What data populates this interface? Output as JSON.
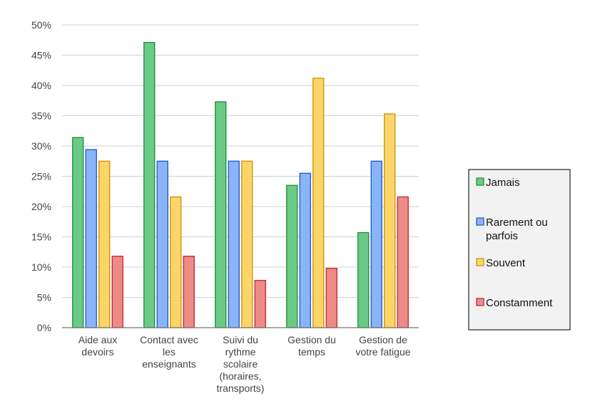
{
  "chart_data": {
    "type": "bar",
    "categories": [
      [
        "Aide aux",
        "devoirs"
      ],
      [
        "Contact avec",
        "les",
        "enseignants"
      ],
      [
        "Suivi du",
        "rythme",
        "scolaire",
        "(horaires,",
        "transports)"
      ],
      [
        "Gestion du",
        "temps"
      ],
      [
        "Gestion de",
        "votre fatigue"
      ]
    ],
    "series": [
      {
        "name": "Jamais",
        "legend_lines": [
          "Jamais"
        ],
        "color": "#6ACB85",
        "stroke": "#1E8A3C",
        "values": [
          31.4,
          47.1,
          37.3,
          23.5,
          15.7
        ]
      },
      {
        "name": "Rarement ou parfois",
        "legend_lines": [
          "Rarement ou",
          "parfois"
        ],
        "color": "#8AB4F8",
        "stroke": "#1A56C8",
        "values": [
          29.4,
          27.5,
          27.5,
          25.5,
          27.5
        ]
      },
      {
        "name": "Souvent",
        "legend_lines": [
          "Souvent"
        ],
        "color": "#FCD56A",
        "stroke": "#C99200",
        "values": [
          27.5,
          21.6,
          27.5,
          41.2,
          35.3
        ]
      },
      {
        "name": "Constamment",
        "legend_lines": [
          "Constamment"
        ],
        "color": "#EE8B86",
        "stroke": "#C0262A",
        "values": [
          11.8,
          11.8,
          7.8,
          9.8,
          21.6
        ]
      }
    ],
    "y_ticks": [
      "0%",
      "5%",
      "10%",
      "15%",
      "20%",
      "25%",
      "30%",
      "35%",
      "40%",
      "45%",
      "50%"
    ],
    "ylim": [
      0,
      50
    ],
    "grid": true,
    "legend_position": "right"
  }
}
